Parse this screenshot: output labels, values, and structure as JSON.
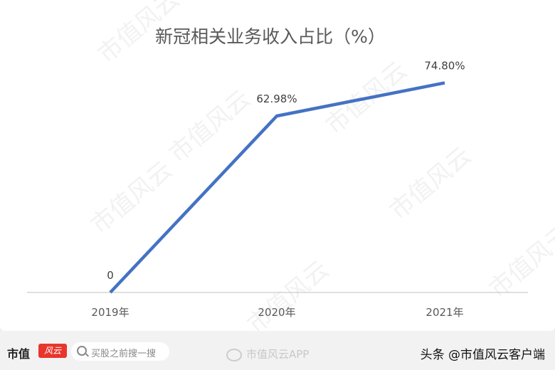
{
  "chart_data": {
    "type": "line",
    "title": "新冠相关业务收入占比（%）",
    "categories": [
      "2019年",
      "2020年",
      "2021年"
    ],
    "values": [
      0,
      62.98,
      74.8
    ],
    "data_labels": [
      "0",
      "62.98%",
      "74.80%"
    ],
    "ylim": [
      0,
      80
    ],
    "grid": false,
    "line_color": "#4472c4",
    "axis_color": "#bfbfbf"
  },
  "watermark": "市值风云",
  "footer": {
    "logo": "市值风云",
    "search_placeholder": "买股之前搜一搜",
    "weibo": "市值风云APP",
    "toutiao": "头条 @市值风云客户端"
  }
}
